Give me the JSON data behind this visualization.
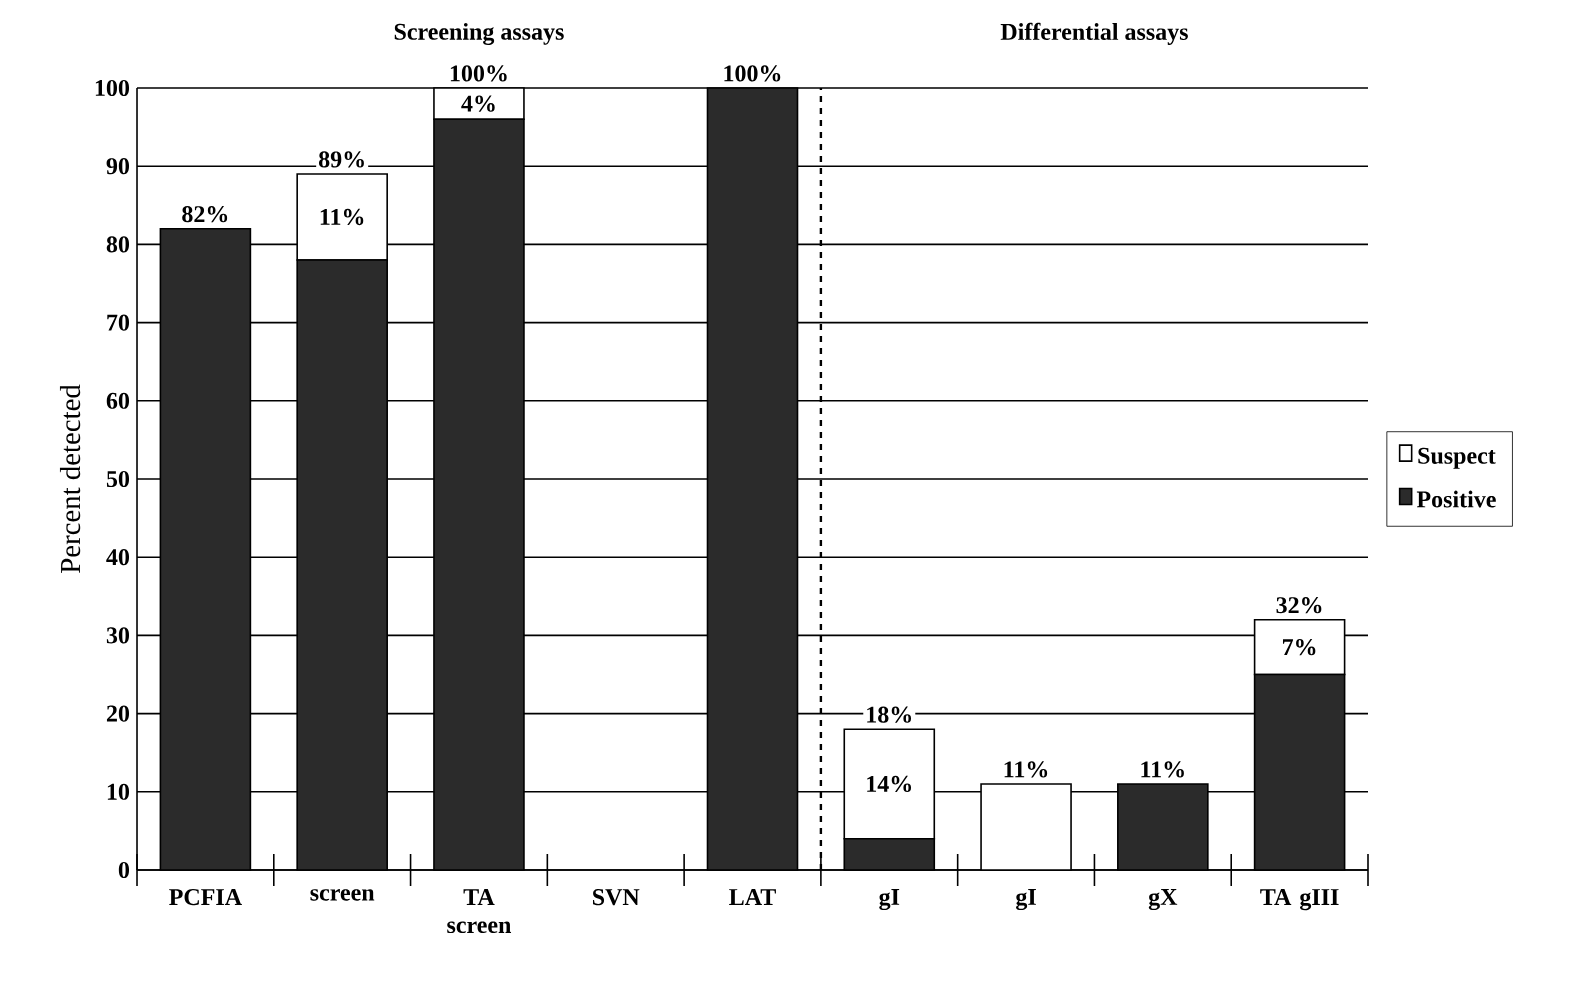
{
  "chart_data": {
    "type": "bar",
    "stacked": true,
    "ylabel": "Percent detected",
    "categories": [
      "PCFIA",
      "screen",
      "TA screen",
      "SVN",
      "LAT",
      "gI",
      "gI",
      "gX",
      "TA gIII"
    ],
    "series": [
      {
        "name": "Positive",
        "color": "#2b2b2b",
        "values": [
          82,
          78,
          96,
          0,
          100,
          4,
          0,
          11,
          25
        ]
      },
      {
        "name": "Suspect",
        "color": "#ffffff",
        "values": [
          0,
          11,
          4,
          0,
          0,
          14,
          11,
          0,
          7
        ],
        "value_labels": [
          null,
          "11%",
          "4%",
          null,
          null,
          "14%",
          null,
          null,
          "7%"
        ]
      }
    ],
    "totals": [
      "82%",
      "89%",
      "100%",
      null,
      "100%",
      "18%",
      "11%",
      "11%",
      "32%"
    ],
    "ylim": [
      0,
      100
    ],
    "yticks": [
      0,
      10,
      20,
      30,
      40,
      50,
      60,
      70,
      80,
      90,
      100
    ],
    "grid": "y",
    "legend": "right",
    "annotations": [
      "Screening assays",
      "Differential assays"
    ]
  }
}
